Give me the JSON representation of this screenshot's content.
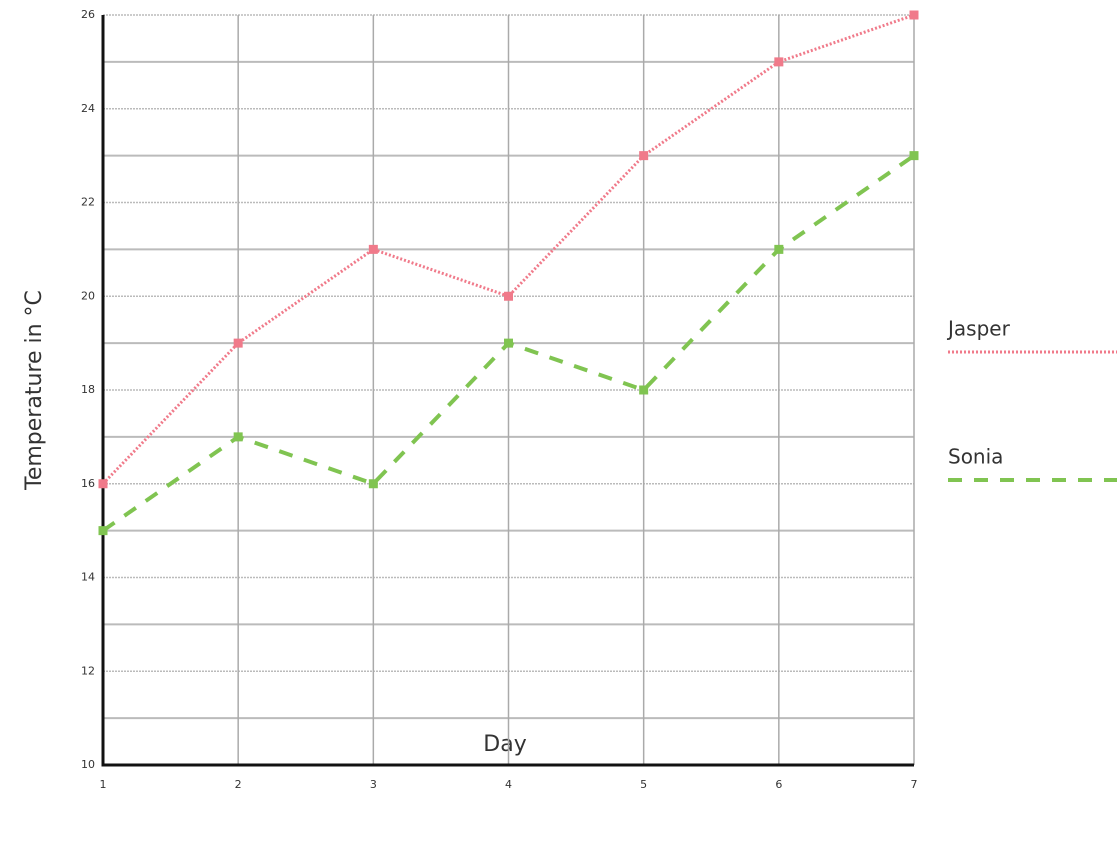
{
  "chart_data": {
    "type": "line",
    "x_label": "Day",
    "y_label": "Temperature in °C",
    "x": [
      1,
      2,
      3,
      4,
      5,
      6,
      7
    ],
    "series": [
      {
        "name": "Jasper",
        "color": "#f07a8a",
        "dash": "dotted",
        "values": [
          16,
          19,
          21,
          20,
          23,
          25,
          26
        ]
      },
      {
        "name": "Sonia",
        "color": "#80c451",
        "dash": "dashed",
        "values": [
          15,
          17,
          16,
          19,
          18,
          21,
          23
        ]
      }
    ],
    "xlim": [
      1,
      7
    ],
    "xticks": [
      1,
      2,
      3,
      4,
      5,
      6,
      7
    ],
    "ylim": [
      10,
      26
    ],
    "yticks": [
      10,
      12,
      14,
      16,
      18,
      20,
      22,
      24,
      26
    ],
    "yminorticks": [
      11,
      13,
      15,
      17,
      19,
      21,
      23,
      25
    ],
    "grid": true,
    "legend": "right"
  }
}
